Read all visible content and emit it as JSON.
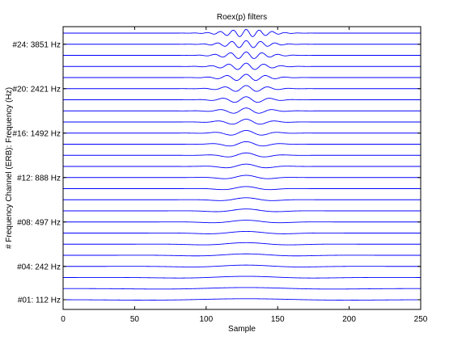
{
  "chart_data": {
    "type": "line",
    "title": "Roex(p) filters",
    "xlabel": "Sample",
    "ylabel": "# Frequency Channel (ERB): Frequency (Hz)",
    "xlim": [
      0,
      250
    ],
    "x_ticks": [
      0,
      50,
      100,
      150,
      200,
      250
    ],
    "x_tick_labels": [
      "0",
      "50",
      "100",
      "150",
      "200",
      "250"
    ],
    "grid": false,
    "line_color": "#0000ff",
    "channel_count": 25,
    "center_sample": 128,
    "y_tick_labels": [
      {
        "channel": 1,
        "label": "#01:  112 Hz"
      },
      {
        "channel": 4,
        "label": "#04:  242 Hz"
      },
      {
        "channel": 8,
        "label": "#08:  497 Hz"
      },
      {
        "channel": 12,
        "label": "#12:  888 Hz"
      },
      {
        "channel": 16,
        "label": "#16: 1492 Hz"
      },
      {
        "channel": 20,
        "label": "#20: 2421 Hz"
      },
      {
        "channel": 24,
        "label": "#24: 3851 Hz"
      }
    ],
    "series": [
      {
        "channel": 1,
        "cycles_per_sample": 0.006
      },
      {
        "channel": 2,
        "cycles_per_sample": 0.007
      },
      {
        "channel": 3,
        "cycles_per_sample": 0.009
      },
      {
        "channel": 4,
        "cycles_per_sample": 0.011
      },
      {
        "channel": 5,
        "cycles_per_sample": 0.012
      },
      {
        "channel": 6,
        "cycles_per_sample": 0.014
      },
      {
        "channel": 7,
        "cycles_per_sample": 0.016
      },
      {
        "channel": 8,
        "cycles_per_sample": 0.018
      },
      {
        "channel": 9,
        "cycles_per_sample": 0.02
      },
      {
        "channel": 10,
        "cycles_per_sample": 0.023
      },
      {
        "channel": 11,
        "cycles_per_sample": 0.026
      },
      {
        "channel": 12,
        "cycles_per_sample": 0.029
      },
      {
        "channel": 13,
        "cycles_per_sample": 0.032
      },
      {
        "channel": 14,
        "cycles_per_sample": 0.036
      },
      {
        "channel": 15,
        "cycles_per_sample": 0.04
      },
      {
        "channel": 16,
        "cycles_per_sample": 0.044
      },
      {
        "channel": 17,
        "cycles_per_sample": 0.049
      },
      {
        "channel": 18,
        "cycles_per_sample": 0.054
      },
      {
        "channel": 19,
        "cycles_per_sample": 0.06
      },
      {
        "channel": 20,
        "cycles_per_sample": 0.066
      },
      {
        "channel": 21,
        "cycles_per_sample": 0.073
      },
      {
        "channel": 22,
        "cycles_per_sample": 0.081
      },
      {
        "channel": 23,
        "cycles_per_sample": 0.09
      },
      {
        "channel": 24,
        "cycles_per_sample": 0.099
      },
      {
        "channel": 25,
        "cycles_per_sample": 0.11
      }
    ]
  }
}
